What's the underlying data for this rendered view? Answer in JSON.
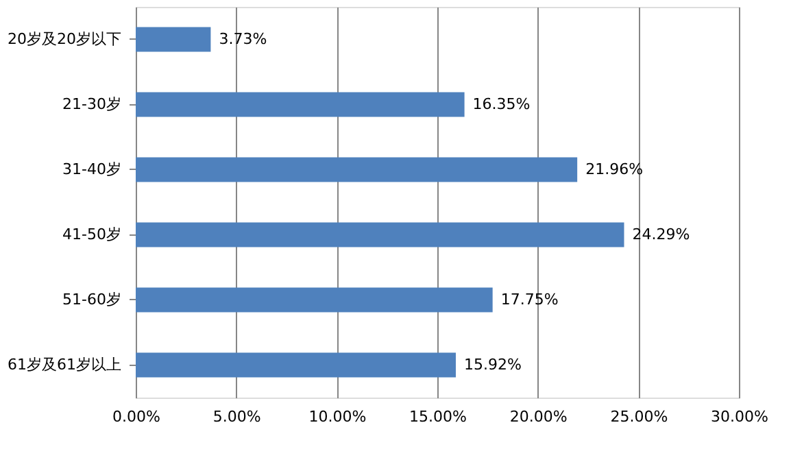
{
  "chart_data": {
    "type": "bar",
    "orientation": "horizontal",
    "categories": [
      "20岁及20岁以下",
      "21-30岁",
      "31-40岁",
      "41-50岁",
      "51-60岁",
      "61岁及61岁以上"
    ],
    "values": [
      3.73,
      16.35,
      21.96,
      24.29,
      17.75,
      15.92
    ],
    "value_labels": [
      "3.73%",
      "16.35%",
      "21.96%",
      "24.29%",
      "17.75%",
      "15.92%"
    ],
    "color": "#4f81bd",
    "xlim": [
      0,
      30
    ],
    "xticks": [
      {
        "value": 0,
        "label": "0.00%"
      },
      {
        "value": 5,
        "label": "5.00%"
      },
      {
        "value": 10,
        "label": "10.00%"
      },
      {
        "value": 15,
        "label": "15.00%"
      },
      {
        "value": 20,
        "label": "20.00%"
      },
      {
        "value": 25,
        "label": "25.00%"
      },
      {
        "value": 30,
        "label": "30.00%"
      }
    ],
    "grid": "x"
  }
}
